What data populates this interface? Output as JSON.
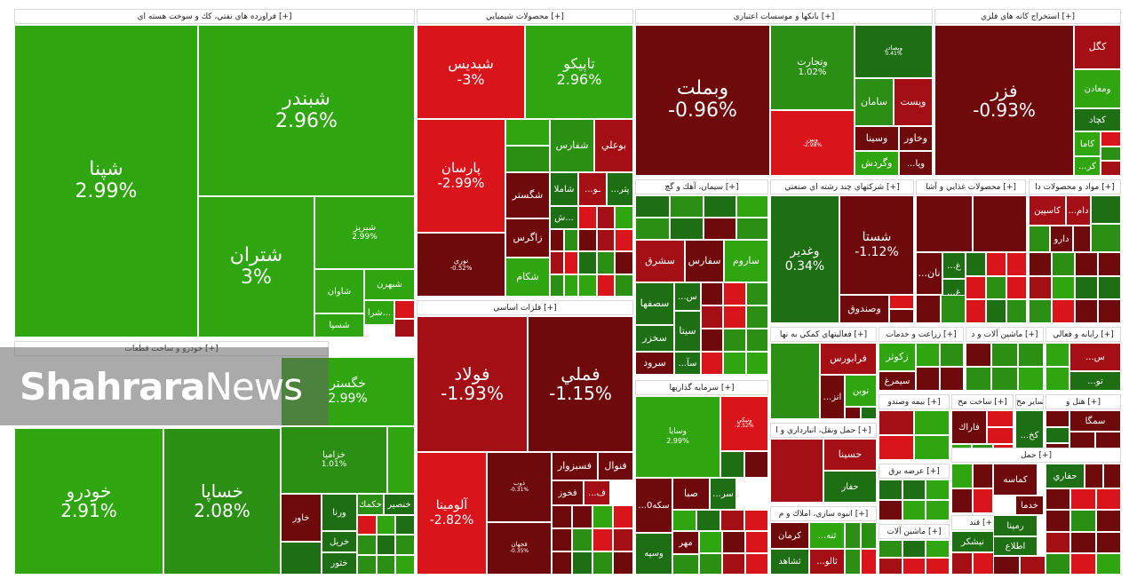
{
  "watermark": {
    "brand_bold": "Shahrara",
    "brand_light": "News"
  },
  "colors": {
    "up_strong": "#2fa60f",
    "up_mid": "#2a8f12",
    "up_dark": "#1e6e14",
    "down_strong": "#d9141a",
    "down_mid": "#a30f14",
    "down_dark": "#6e0a0c"
  },
  "chart_data": {
    "type": "treemap",
    "sectors": [
      {
        "title": "فراورده هاي نفتي، كك و سوخت هسته اي [+]",
        "stocks": [
          {
            "symbol": "شپنا",
            "change": 2.99,
            "label": "2.99%"
          },
          {
            "symbol": "شبندر",
            "change": 2.96,
            "label": "2.96%"
          },
          {
            "symbol": "شتران",
            "change": 3,
            "label": "3%"
          },
          {
            "symbol": "شبريز",
            "change": 2.99,
            "label": "2.99%"
          },
          {
            "symbol": "شاوان"
          },
          {
            "symbol": "شبهرن"
          },
          {
            "symbol": "شسپا"
          },
          {
            "symbol": "شرا..."
          }
        ]
      },
      {
        "title": "محصولات شيميايي [+]",
        "stocks": [
          {
            "symbol": "شبديس",
            "change": -3,
            "label": "-3%"
          },
          {
            "symbol": "تاپيكو",
            "change": 2.96,
            "label": "2.96%"
          },
          {
            "symbol": "پارسان",
            "change": -2.99,
            "label": "-2.99%"
          },
          {
            "symbol": "نوري",
            "change": -0.52,
            "label": "-0.52%"
          },
          {
            "symbol": "بوعلي"
          },
          {
            "symbol": "شفارس"
          },
          {
            "symbol": "شگستر"
          },
          {
            "symbol": "شاملا"
          },
          {
            "symbol": "زاگرس"
          },
          {
            "symbol": "شكام"
          },
          {
            "symbol": "ش..."
          },
          {
            "symbol": "...پتر"
          },
          {
            "symbol": "...ـو"
          }
        ]
      },
      {
        "title": "فلزات اساسي [+]",
        "stocks": [
          {
            "symbol": "فولاد",
            "change": -1.93,
            "label": "-1.93%"
          },
          {
            "symbol": "فملي",
            "change": -1.15,
            "label": "-1.15%"
          },
          {
            "symbol": "آلومينا",
            "change": -2.82,
            "label": "-2.82%"
          },
          {
            "symbol": "ذوب",
            "change": -0.31,
            "label": "-0.31%"
          },
          {
            "symbol": "فخوز"
          },
          {
            "symbol": "فسبزوار"
          },
          {
            "symbol": "فنوال"
          },
          {
            "symbol": "...ف"
          },
          {
            "symbol": "فجهان",
            "change": -0.35,
            "label": "-0.35%"
          }
        ]
      },
      {
        "title": "بانكها و موسسات اعتباري [+]",
        "stocks": [
          {
            "symbol": "وبملت",
            "change": -0.96,
            "label": "-0.96%"
          },
          {
            "symbol": "وتجارت",
            "change": 1.02,
            "label": "1.02%"
          },
          {
            "symbol": "وبصادر",
            "change": 0.41,
            "label": "0.41%"
          },
          {
            "symbol": "وبين",
            "change": -2.98,
            "label": "-2.98%"
          },
          {
            "symbol": "سامان"
          },
          {
            "symbol": "وپست"
          },
          {
            "symbol": "وسينا"
          },
          {
            "symbol": "وخاور"
          },
          {
            "symbol": "وگردش"
          },
          {
            "symbol": "...ويا"
          }
        ]
      },
      {
        "title": "استخراج كانه هاي فلزي [+]",
        "stocks": [
          {
            "symbol": "فزر",
            "change": -0.93,
            "label": "-0.93%"
          },
          {
            "symbol": "كگل"
          },
          {
            "symbol": "ومعادن"
          },
          {
            "symbol": "كچاد"
          },
          {
            "symbol": "كاما"
          },
          {
            "symbol": "...كر"
          }
        ]
      },
      {
        "title": "سيمان، آهك و گچ [+]",
        "stocks": [
          {
            "symbol": "سفارس"
          },
          {
            "symbol": "سشرق"
          },
          {
            "symbol": "ساروم"
          },
          {
            "symbol": "سصفها"
          },
          {
            "symbol": "سخزر"
          },
          {
            "symbol": "سيتا"
          },
          {
            "symbol": "سرود"
          },
          {
            "symbol": "...س"
          },
          {
            "symbol": "...سآ"
          }
        ]
      },
      {
        "title": "شركتهاي چند رشته اي صنعتي [+]",
        "stocks": [
          {
            "symbol": "وغدير",
            "change": 0.34,
            "label": "0.34%"
          },
          {
            "symbol": "شستا",
            "change": -1.12,
            "label": "-1.12%"
          },
          {
            "symbol": "وصندوق"
          }
        ]
      },
      {
        "title": "محصولات غذايي و آشا [+]",
        "stocks": [
          {
            "symbol": "...غ"
          },
          {
            "symbol": "...نان"
          },
          {
            "symbol": "...غ"
          }
        ]
      },
      {
        "title": "مواد و محصولات دا [+]",
        "stocks": [
          {
            "symbol": "كاسپين"
          },
          {
            "symbol": "دارو"
          },
          {
            "symbol": "...دام"
          }
        ]
      },
      {
        "title": "سرمايه گذاريها [+]",
        "stocks": [
          {
            "symbol": "وسايا",
            "change": 2.99,
            "label": "2.99%"
          },
          {
            "symbol": "ونيكي",
            "change": -2.52,
            "label": "-2.52%"
          },
          {
            "symbol": "صبا"
          },
          {
            "symbol": "...سكه0"
          },
          {
            "symbol": "وسپه"
          },
          {
            "symbol": "مهر"
          },
          {
            "symbol": "...سر"
          }
        ]
      },
      {
        "title": "فعاليتهاي كمكي به نها [+]",
        "stocks": [
          {
            "symbol": "فرابورس"
          },
          {
            "symbol": "نوبن"
          },
          {
            "symbol": "...انز"
          }
        ]
      },
      {
        "title": "زراعت و خدمات [+]",
        "stocks": [
          {
            "symbol": "زكوثر"
          },
          {
            "symbol": "سيمرغ"
          }
        ]
      },
      {
        "title": "ماشين آلات و د [+]",
        "stocks": []
      },
      {
        "title": "رايانه و فعالي [+]",
        "stocks": [
          {
            "symbol": "...س"
          },
          {
            "symbol": "...تو"
          }
        ]
      },
      {
        "title": "حمل ونقل، انبارداري و ا [+]",
        "stocks": [
          {
            "symbol": "حسينا"
          },
          {
            "symbol": "حفار"
          }
        ]
      },
      {
        "title": "انبوه سازي، املاك و م [+]",
        "stocks": [
          {
            "symbol": "كرمان"
          },
          {
            "symbol": "ثشاهد"
          },
          {
            "symbol": "...ثنه"
          },
          {
            "symbol": "...ثالو"
          }
        ]
      },
      {
        "title": "خودرو و ساخت قطعات [+]",
        "stocks": [
          {
            "symbol": "خودرو",
            "change": 2.91,
            "label": "2.91%"
          },
          {
            "symbol": "خساپا",
            "change": 2.08,
            "label": "2.08%"
          },
          {
            "symbol": "خگستر",
            "change": 2.99,
            "label": "2.99%"
          },
          {
            "symbol": "خزاميا",
            "change": 1.01,
            "label": "1.01%"
          },
          {
            "symbol": "خاور"
          },
          {
            "symbol": "ورنا"
          },
          {
            "symbol": "خكمك"
          },
          {
            "symbol": "خنصير"
          },
          {
            "symbol": "خريل"
          },
          {
            "symbol": "ختور"
          }
        ]
      },
      {
        "title": "بيمه وصندو [+]",
        "stocks": []
      },
      {
        "title": "ساخت مح [+]",
        "stocks": [
          {
            "symbol": "فاراك"
          }
        ]
      },
      {
        "title": "ساير مح [+]",
        "stocks": [
          {
            "symbol": "...كخ"
          }
        ]
      },
      {
        "title": "هتل و [+]",
        "stocks": [
          {
            "symbol": "سمگا"
          }
        ]
      },
      {
        "title": "عرضه برق [+]",
        "stocks": []
      },
      {
        "title": "ماشين آلات [+]",
        "stocks": []
      },
      {
        "title": "قند [+]",
        "stocks": [
          {
            "symbol": "نيشكر"
          }
        ]
      },
      {
        "title": "حمل [+]",
        "stocks": [
          {
            "symbol": "كماسه"
          },
          {
            "symbol": "خدما"
          },
          {
            "symbol": "رمپنا"
          },
          {
            "symbol": "حفاري"
          },
          {
            "symbol": "اطلاع"
          }
        ]
      }
    ]
  }
}
